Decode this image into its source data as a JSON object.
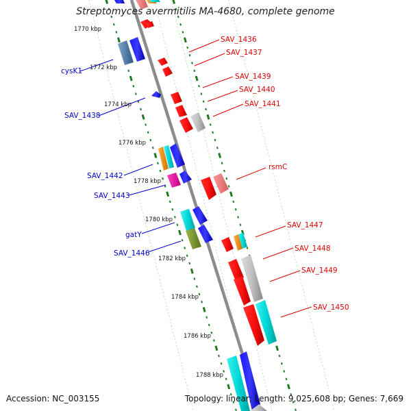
{
  "title": "Streptomyces avermitilis MA-4680, complete genome",
  "footer": {
    "accession": "Accession: NC_003155",
    "topology": "Topology: linear; Length: 9,025,608 bp; Genes: 7,669"
  },
  "colors": {
    "backbone": "#8c8c8c",
    "ticks": "#1f7a1f",
    "forward_label": "#0000cc",
    "reverse_label": "#dd0000"
  },
  "scale_labels": [
    "1770 kbp",
    "1772 kbp",
    "1774 kbp",
    "1776 kbp",
    "1778 kbp",
    "1780 kbp",
    "1782 kbp",
    "1784 kbp",
    "1786 kbp",
    "1788 kbp"
  ],
  "gene_labels": {
    "left": [
      "cysK1",
      "SAV_1438",
      "SAV_1442",
      "SAV_1443",
      "gatY",
      "SAV_1446"
    ],
    "right": [
      "SAV_1436",
      "SAV_1437",
      "SAV_1439",
      "SAV_1440",
      "SAV_1441",
      "rsmC",
      "SAV_1447",
      "SAV_1448",
      "SAV_1449",
      "SAV_1450"
    ]
  }
}
